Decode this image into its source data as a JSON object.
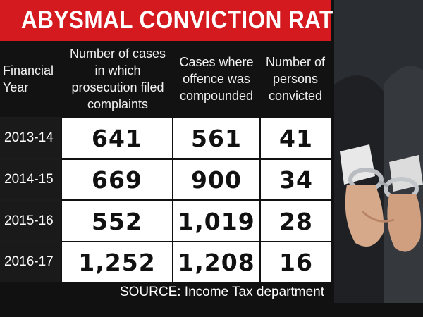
{
  "title": "ABYSMAL CONVICTION RATE",
  "headers": {
    "year": "Financial Year",
    "col1": "Number of cases in which prosecution filed complaints",
    "col2": "Cases where offence was compounded",
    "col3": "Number of persons convicted"
  },
  "rows": [
    {
      "year": "2013-14",
      "col1": "641",
      "col2": "561",
      "col3": "41"
    },
    {
      "year": "2014-15",
      "col1": "669",
      "col2": "900",
      "col3": "34"
    },
    {
      "year": "2015-16",
      "col1": "552",
      "col2": "1,019",
      "col3": "28"
    },
    {
      "year": "2016-17",
      "col1": "1,252",
      "col2": "1,208",
      "col3": "16"
    }
  ],
  "source": "SOURCE: Income Tax department",
  "colors": {
    "title_bg": "#d51a1f",
    "background": "#111111",
    "cell_bg": "#ffffff"
  },
  "photo_subject": "handcuffed-hands-icon"
}
